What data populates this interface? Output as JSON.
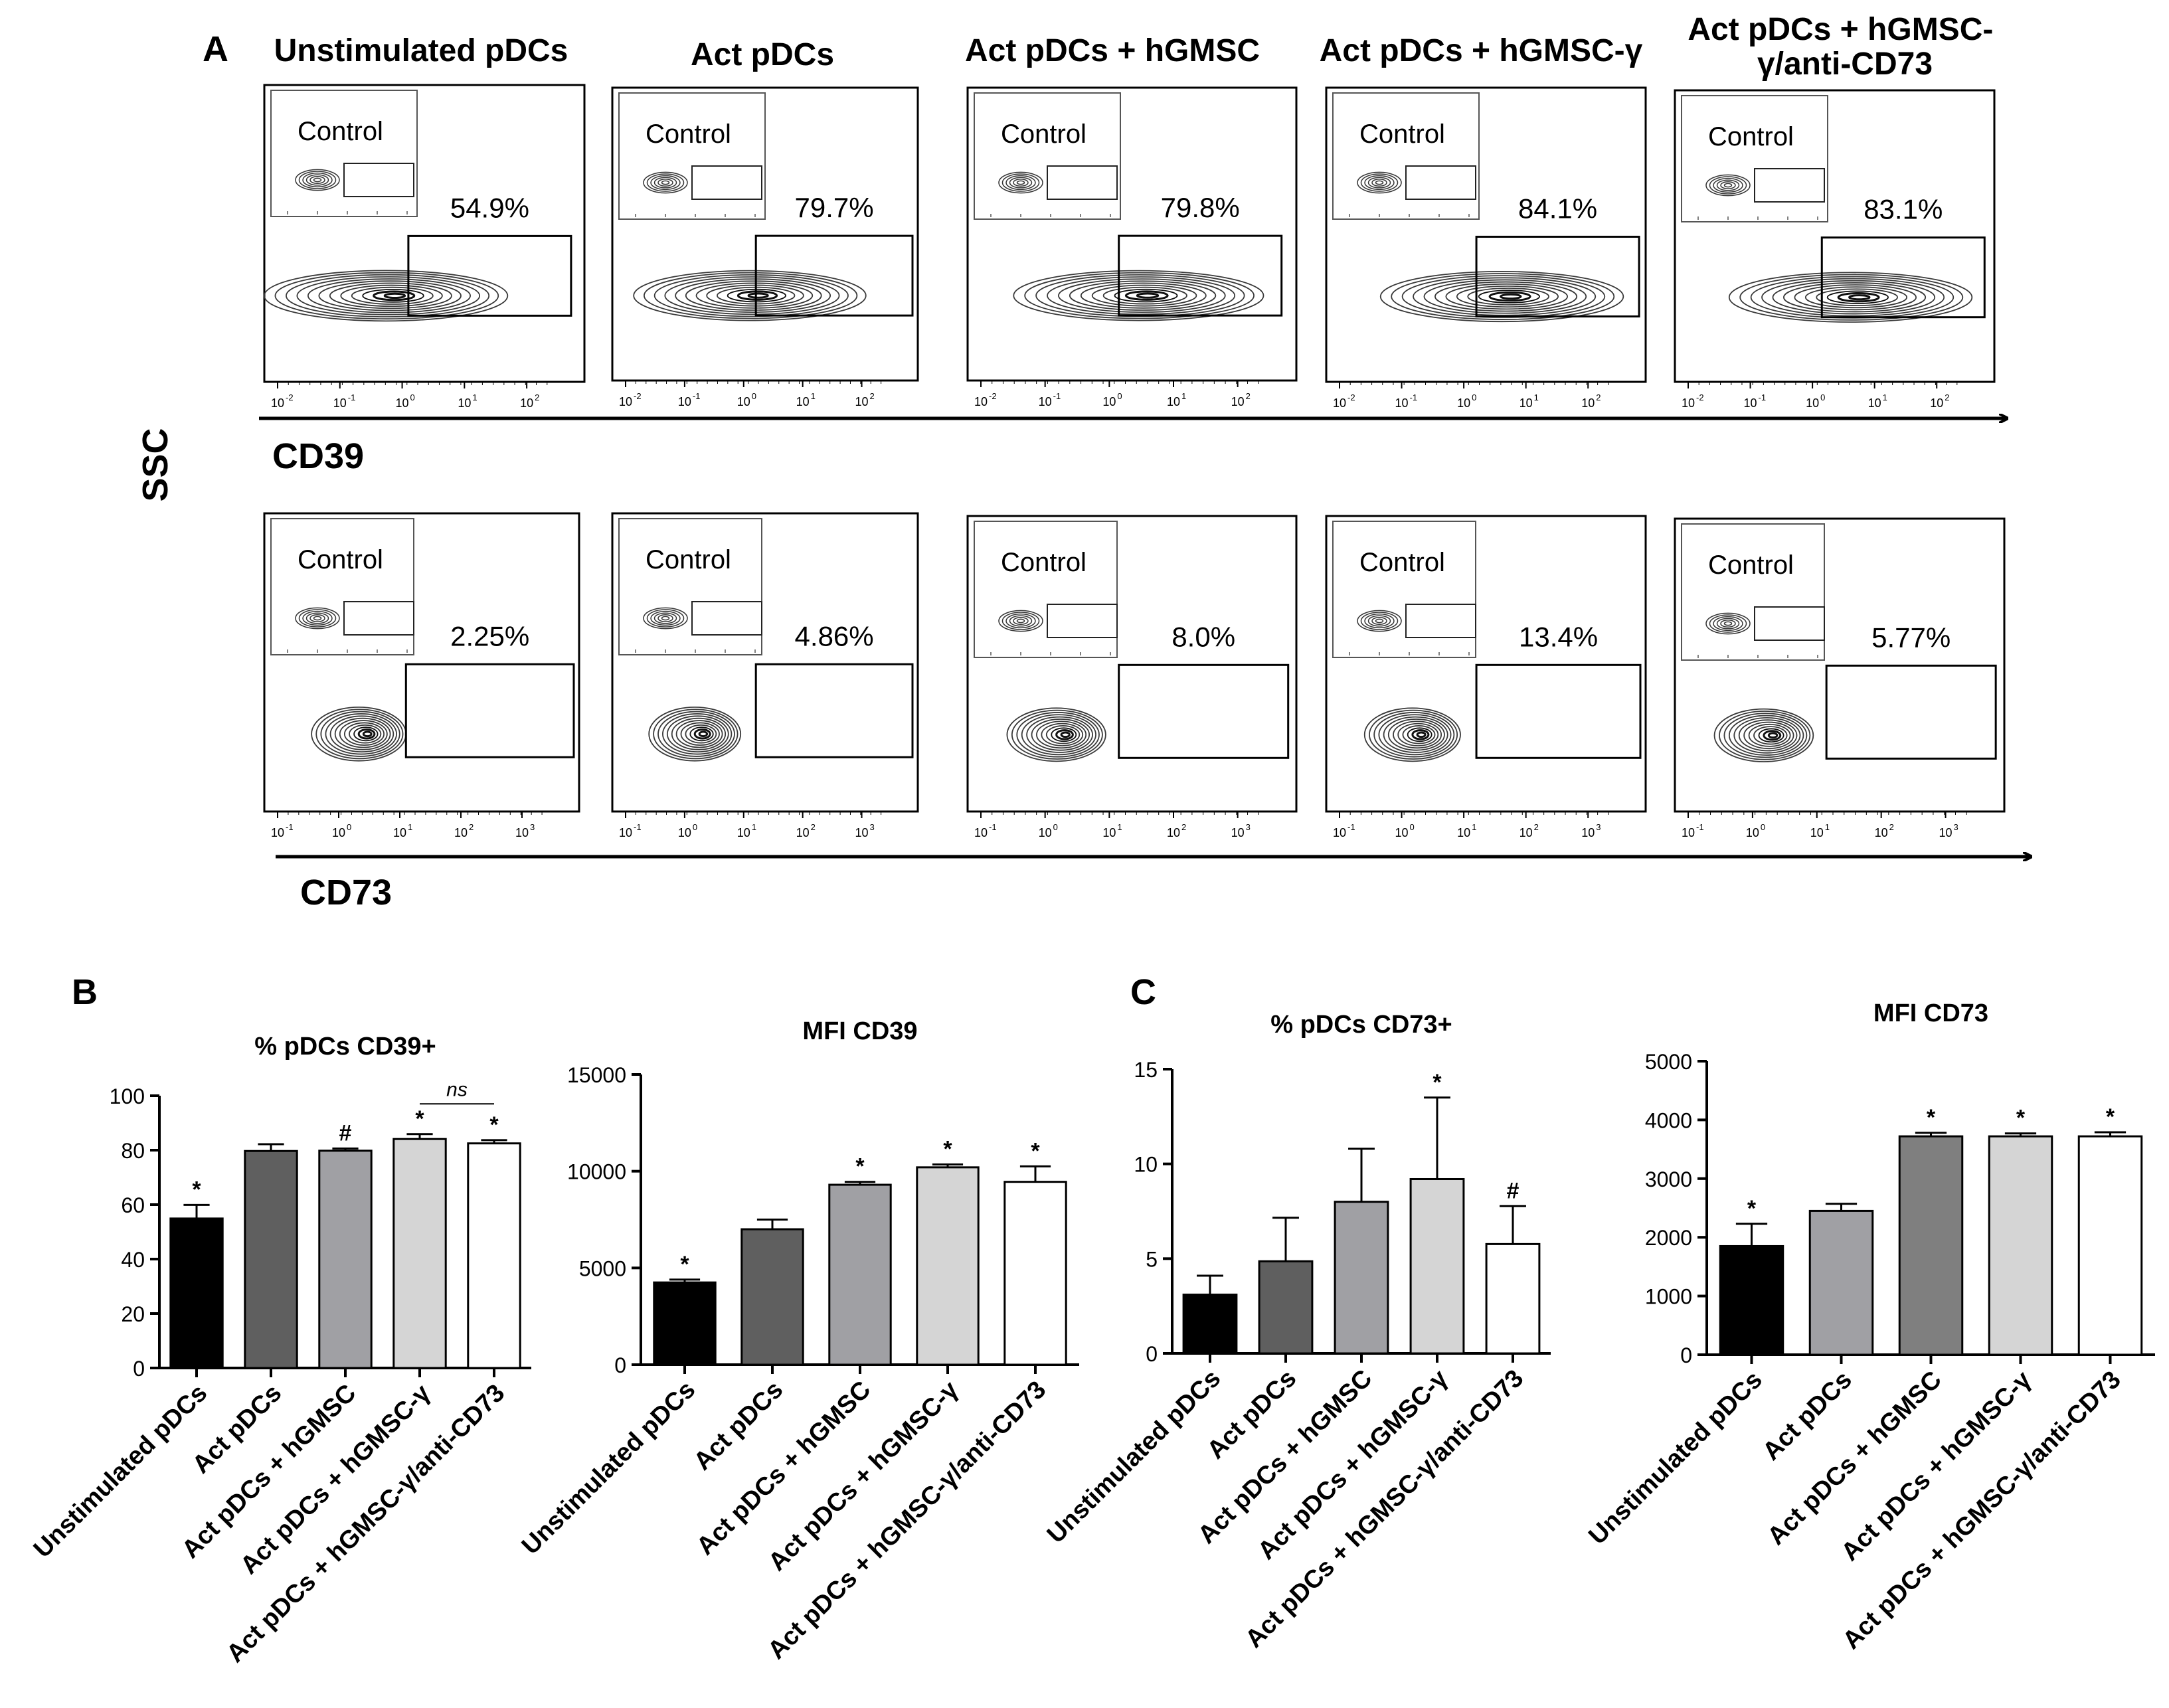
{
  "panel_a": {
    "label": "A",
    "column_titles": [
      "Unstimulated pDCs",
      "Act pDCs",
      "Act pDCs + hGMSC",
      "Act pDCs + hGMSC-γ",
      "Act pDCs + hGMSC-\nγ/anti-CD73"
    ],
    "y_axis_label": "SSC",
    "control_label": "Control",
    "rows": [
      {
        "marker": "CD39",
        "percentages": [
          "54.9%",
          "79.7%",
          "79.8%",
          "84.1%",
          "83.1%"
        ],
        "tick_labels": [
          "10-2",
          "10-1",
          "100",
          "101",
          "102"
        ]
      },
      {
        "marker": "CD73",
        "percentages": [
          "2.25%",
          "4.86%",
          "8.0%",
          "13.4%",
          "5.77%"
        ],
        "tick_labels": [
          "10-1",
          "100",
          "101",
          "102",
          "103"
        ]
      }
    ]
  },
  "panel_labels": {
    "b": "B",
    "c": "C"
  },
  "chart_data": [
    {
      "type": "bar",
      "title": "% pDCs CD39+",
      "categories": [
        "Unstimulated pDCs",
        "Act pDCs",
        "Act pDCs + hGMSC",
        "Act pDCs + hGMSC-γ",
        "Act pDCs + hGMSC-γ/anti-CD73"
      ],
      "values": [
        54.9,
        79.7,
        79.8,
        84.1,
        82.5
      ],
      "errors": [
        5,
        2.5,
        0.8,
        1.8,
        1.2
      ],
      "annotations": [
        "*",
        "",
        "#",
        "*",
        "*"
      ],
      "bracket_label": "ns",
      "ylim": [
        0,
        100
      ],
      "yticks": [
        0,
        20,
        40,
        60,
        80,
        100
      ],
      "colors": [
        "#000000",
        "#5f5f5f",
        "#a0a0a4",
        "#d5d5d5",
        "#ffffff"
      ]
    },
    {
      "type": "bar",
      "title": "MFI CD39",
      "categories": [
        "Unstimulated pDCs",
        "Act pDCs",
        "Act pDCs + hGMSC",
        "Act pDCs + hGMSC-γ",
        "Act pDCs + hGMSC-γ/anti-CD73"
      ],
      "values": [
        4250,
        7000,
        9300,
        10200,
        9450
      ],
      "errors": [
        150,
        500,
        150,
        150,
        800
      ],
      "annotations": [
        "*",
        "",
        "*",
        "*",
        "*"
      ],
      "ylim": [
        0,
        15000
      ],
      "yticks": [
        0,
        5000,
        10000,
        15000
      ],
      "colors": [
        "#000000",
        "#5f5f5f",
        "#a0a0a4",
        "#d5d5d5",
        "#ffffff"
      ]
    },
    {
      "type": "bar",
      "title": "% pDCs CD73+",
      "categories": [
        "Unstimulated pDCs",
        "Act pDCs",
        "Act pDCs + hGMSC",
        "Act pDCs + hGMSC-γ",
        "Act pDCs + hGMSC-γ/anti-CD73"
      ],
      "values": [
        3.1,
        4.86,
        8.0,
        9.2,
        5.77
      ],
      "errors": [
        1.0,
        2.3,
        2.8,
        4.3,
        2.0
      ],
      "annotations": [
        "",
        "",
        "",
        "*",
        "#"
      ],
      "ylim": [
        0,
        15
      ],
      "yticks": [
        0,
        5,
        10,
        15
      ],
      "colors": [
        "#000000",
        "#5f5f5f",
        "#a0a0a4",
        "#d5d5d5",
        "#ffffff"
      ]
    },
    {
      "type": "bar",
      "title": "MFI CD73",
      "categories": [
        "Unstimulated pDCs",
        "Act pDCs",
        "Act pDCs + hGMSC",
        "Act pDCs + hGMSC-γ",
        "Act pDCs + hGMSC-γ/anti-CD73"
      ],
      "values": [
        1850,
        2450,
        3720,
        3720,
        3720
      ],
      "errors": [
        380,
        120,
        60,
        50,
        70
      ],
      "annotations": [
        "*",
        "",
        "*",
        "*",
        "*"
      ],
      "ylim": [
        0,
        5000
      ],
      "yticks": [
        0,
        1000,
        2000,
        3000,
        4000,
        5000
      ],
      "colors": [
        "#000000",
        "#a0a0a4",
        "#7f7f7f",
        "#d5d5d5",
        "#ffffff"
      ]
    }
  ]
}
